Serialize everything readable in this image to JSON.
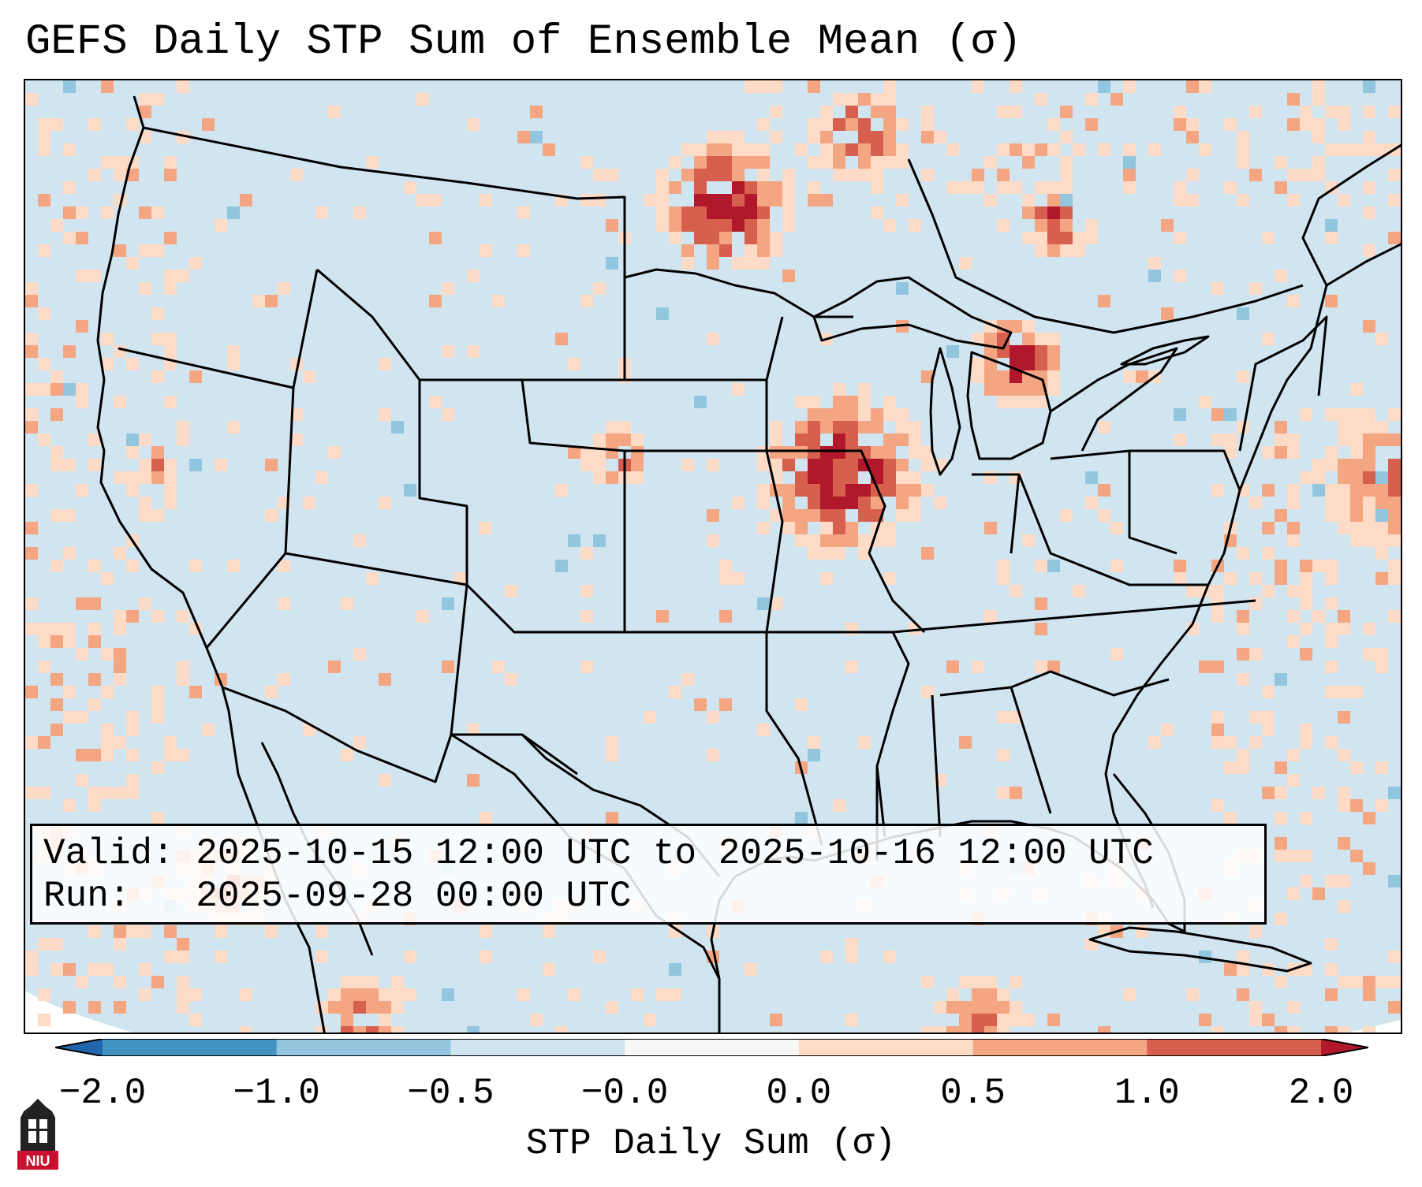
{
  "title": "GEFS Daily STP Sum of Ensemble Mean (σ)",
  "info": {
    "valid_label": "Valid:",
    "valid_value": "2025-10-15 12:00 UTC to 2025-10-16 12:00 UTC",
    "run_label": "Run:",
    "run_value": "2025-09-28 00:00 UTC"
  },
  "colorbar": {
    "label": "STP Daily Sum (σ)",
    "ticks": [
      "−2.0",
      "−1.0",
      "−0.5",
      "−0.0",
      "0.0",
      "0.5",
      "1.0",
      "2.0"
    ],
    "colors": [
      "#2166ac",
      "#4393c3",
      "#92c5de",
      "#d1e5f0",
      "#f7f7f7",
      "#fddbc7",
      "#f4a582",
      "#d6604d",
      "#b2182b"
    ]
  },
  "map": {
    "background_color": "#d1e5f0",
    "region": "Continental United States",
    "high_anomaly_areas": [
      "North Dakota / Minnesota border",
      "Southern Manitoba / Ontario",
      "Northern Missouri / Iowa / Illinois",
      "Lower Michigan",
      "Southeastern Colorado / western Kansas"
    ]
  },
  "logo": {
    "text": "NIU",
    "brand_color": "#c8102e"
  }
}
